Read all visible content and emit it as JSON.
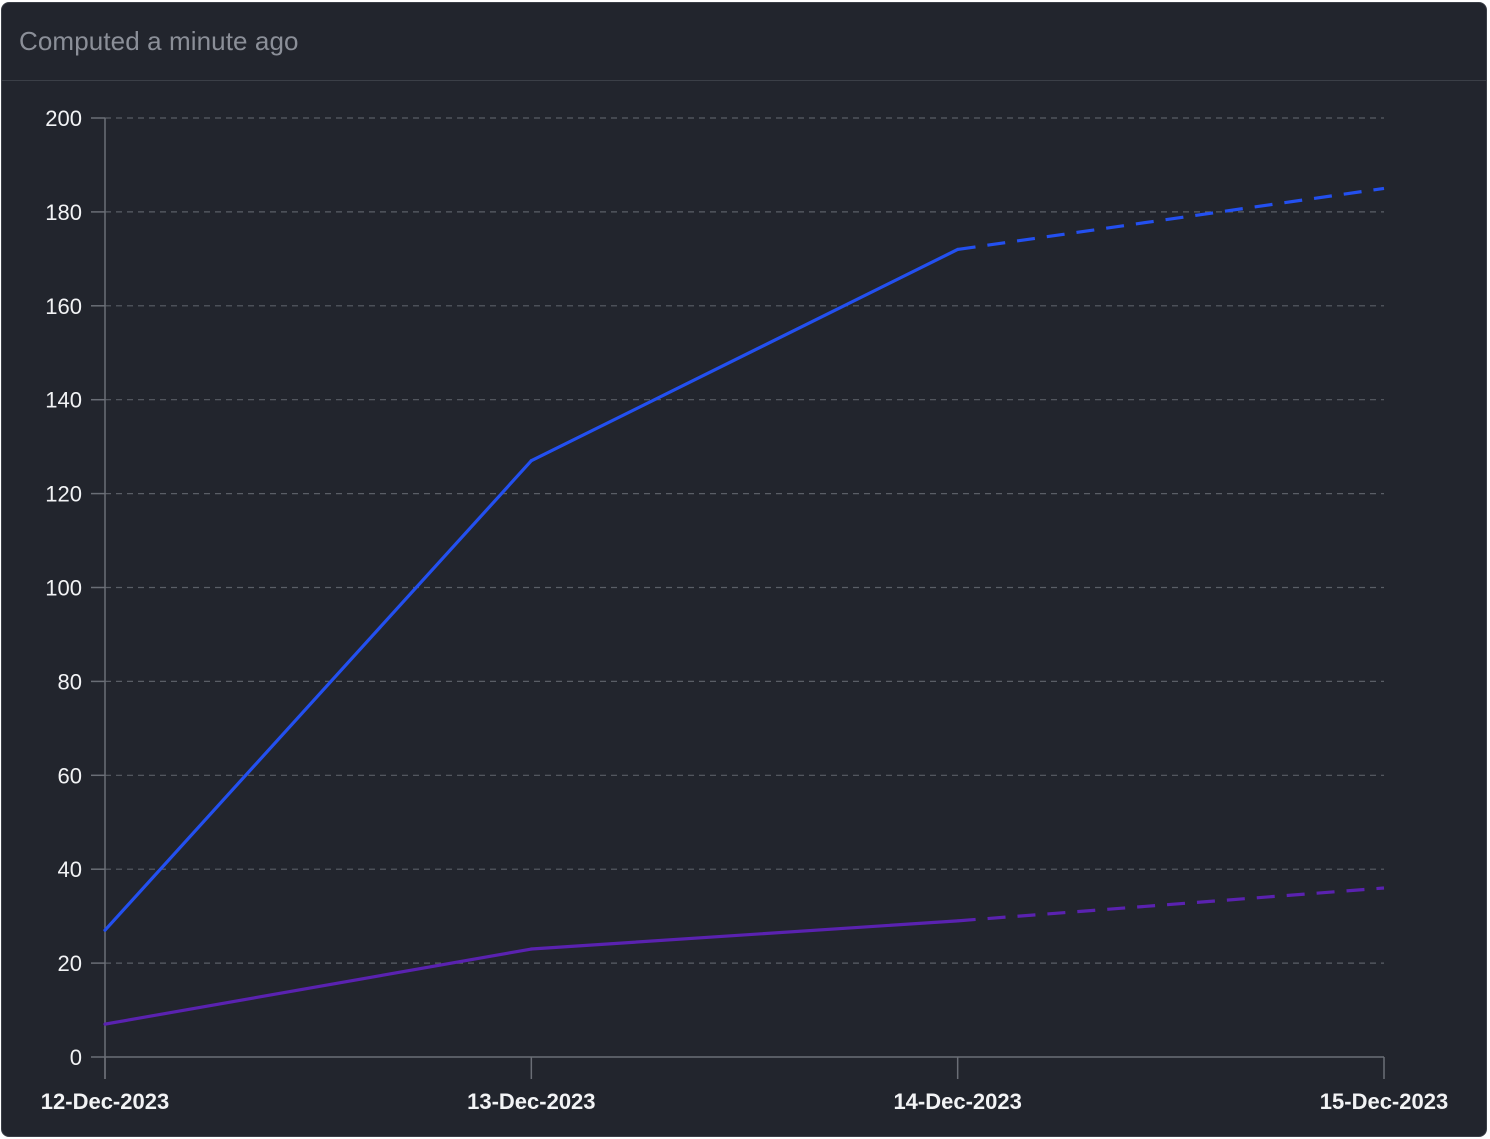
{
  "header": {
    "status_text": "Computed a minute ago"
  },
  "colors": {
    "background": "#22252d",
    "grid": "#5a5e66",
    "axis": "#6a6e76",
    "series_blue": "#2350f0",
    "series_purple": "#5a22b0"
  },
  "chart_data": {
    "type": "line",
    "title": "",
    "xlabel": "",
    "ylabel": "",
    "x": [
      "12-Dec-2023",
      "13-Dec-2023",
      "14-Dec-2023",
      "15-Dec-2023"
    ],
    "ylim": [
      0,
      200
    ],
    "yticks": [
      0,
      20,
      40,
      60,
      80,
      100,
      120,
      140,
      160,
      180,
      200
    ],
    "grid": true,
    "series": [
      {
        "color": "#2350f0",
        "values": [
          27,
          127,
          172,
          185
        ],
        "style_by_segment": [
          "solid",
          "solid",
          "dashed"
        ]
      },
      {
        "color": "#5a22b0",
        "values": [
          7,
          23,
          29,
          36
        ],
        "style_by_segment": [
          "solid",
          "solid",
          "dashed"
        ]
      }
    ]
  }
}
